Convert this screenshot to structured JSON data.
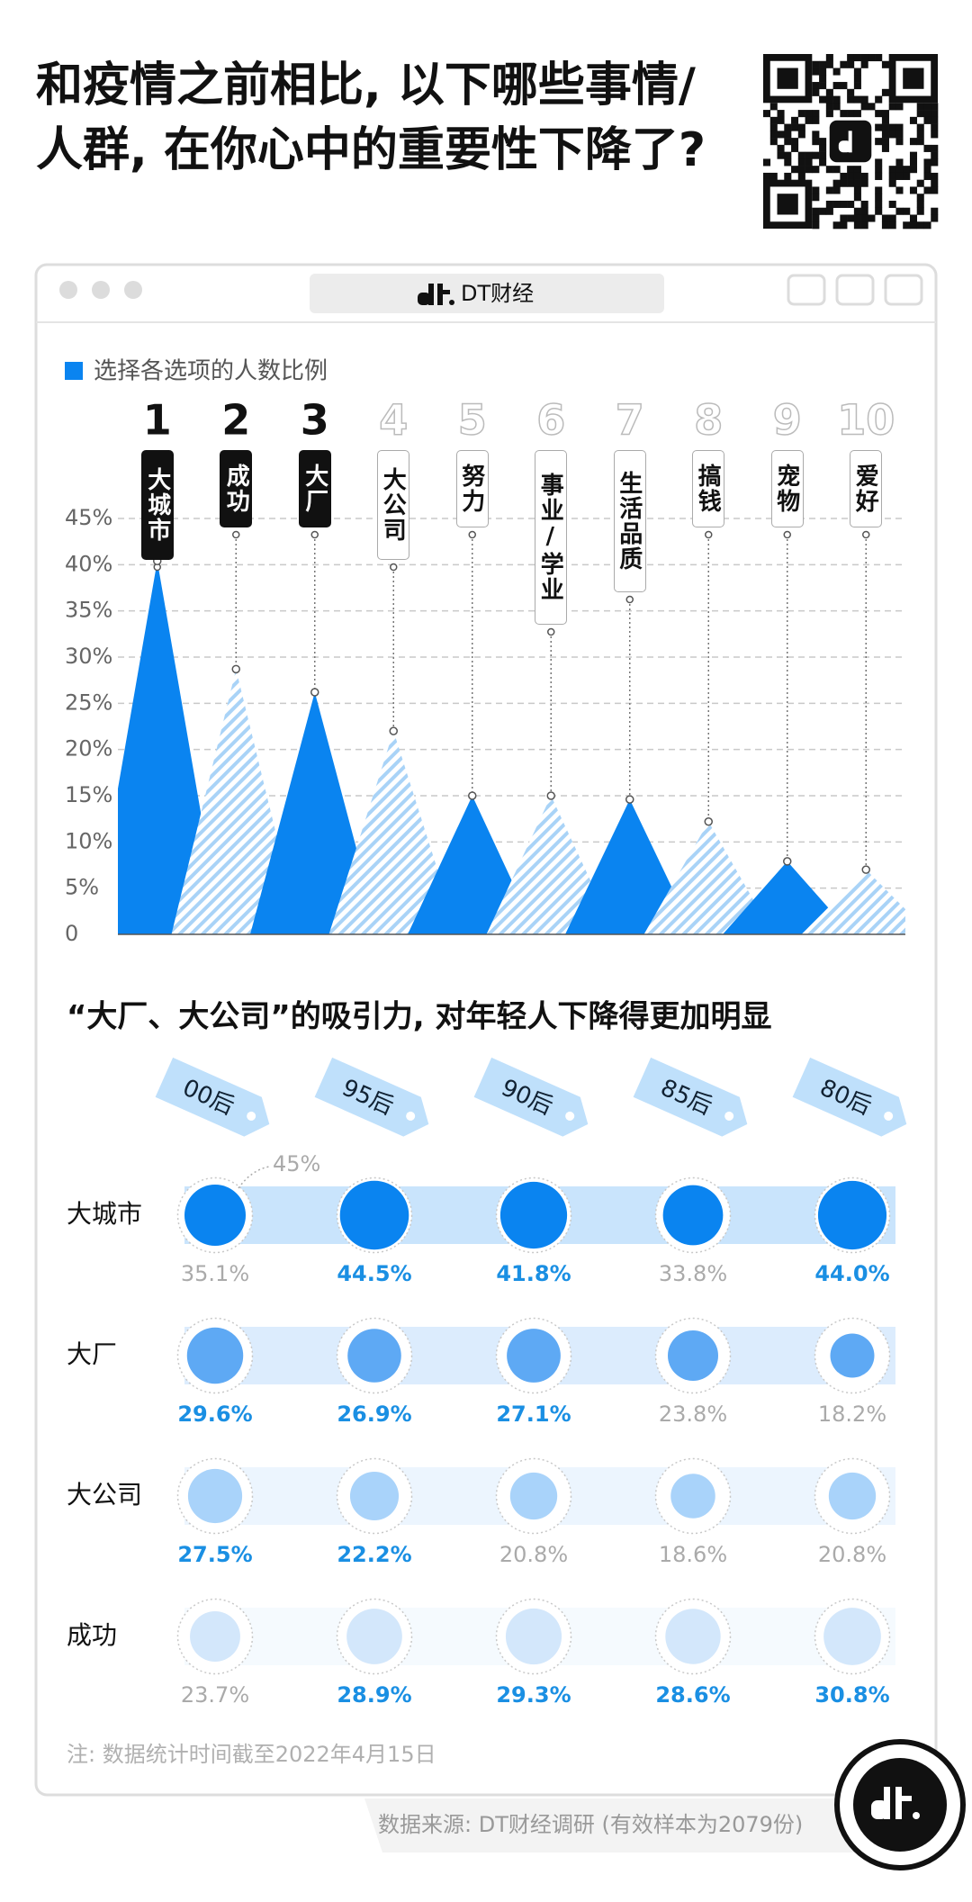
{
  "title": [
    "和疫情之前相比, 以下哪些事情/",
    "人群, 在你心中的重要性下降了?"
  ],
  "window_title": "DT财经",
  "chart_data": [
    {
      "type": "peak",
      "ranks": [
        1,
        2,
        3,
        4,
        5,
        6,
        7,
        8,
        9,
        10
      ],
      "categories": [
        "大城市",
        "成功",
        "大厂",
        "大公司",
        "努力",
        "事业/学业",
        "生活品质",
        "搞钱",
        "宠物",
        "爱好"
      ],
      "series": [
        {
          "name": "选择各选项的人数比例",
          "color": "#0a84f0",
          "values": [
            40.4,
            28.7,
            26.2,
            22.0,
            15.0,
            15.0,
            14.6,
            12.2,
            7.9,
            7.0
          ]
        }
      ],
      "alt_color": "#a9d3f7",
      "emphasized_count": 3,
      "ylim": [
        0,
        45
      ],
      "yticks": [
        0,
        {
          "value": 5,
          "label": "5%"
        },
        {
          "value": 10,
          "label": "10%"
        },
        {
          "value": 15,
          "label": "15%"
        },
        {
          "value": 20,
          "label": "20%"
        },
        {
          "value": 25,
          "label": "25%"
        },
        {
          "value": 30,
          "label": "30%"
        },
        {
          "value": 35,
          "label": "35%"
        },
        {
          "value": 40,
          "label": "40%"
        },
        {
          "value": 45,
          "label": "45%"
        }
      ],
      "grid": true
    },
    {
      "type": "dot",
      "title": "“大厂、大公司”的吸引力, 对年轻人下降得更加明显",
      "categories": [
        "00后",
        "95后",
        "90后",
        "85后",
        "80后"
      ],
      "size_reference": {
        "value": 45,
        "label": "45%"
      },
      "series": [
        {
          "name": "大城市",
          "color": "#0a84f0",
          "values": [
            35.1,
            44.5,
            41.8,
            33.8,
            44.0
          ],
          "value_labels": [
            "35.1%",
            "44.5%",
            "41.8%",
            "33.8%",
            "44.0%"
          ],
          "highlight": [
            false,
            true,
            true,
            false,
            true
          ]
        },
        {
          "name": "大厂",
          "color": "#5ea9f4",
          "values": [
            29.6,
            26.9,
            27.1,
            23.8,
            18.2
          ],
          "value_labels": [
            "29.6%",
            "26.9%",
            "27.1%",
            "23.8%",
            "18.2%"
          ],
          "highlight": [
            true,
            true,
            true,
            false,
            false
          ]
        },
        {
          "name": "大公司",
          "color": "#a9d3fa",
          "values": [
            27.5,
            22.2,
            20.8,
            18.6,
            20.8
          ],
          "value_labels": [
            "27.5%",
            "22.2%",
            "20.8%",
            "18.6%",
            "20.8%"
          ],
          "highlight": [
            true,
            true,
            false,
            false,
            false
          ]
        },
        {
          "name": "成功",
          "color": "#d3e7fb",
          "values": [
            23.7,
            28.9,
            29.3,
            28.6,
            30.8
          ],
          "value_labels": [
            "23.7%",
            "28.9%",
            "29.3%",
            "28.6%",
            "30.8%"
          ],
          "highlight": [
            false,
            true,
            true,
            true,
            true
          ]
        }
      ]
    }
  ],
  "note": "注: 数据统计时间截至2022年4月15日",
  "source": "数据来源: DT财经调研 (有效样本为2079份)"
}
